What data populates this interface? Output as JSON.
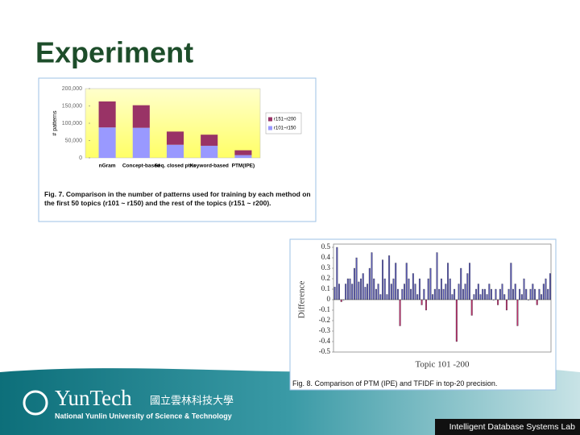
{
  "slide_title": "Experiment",
  "footer": {
    "logo": "YunTech",
    "university_cn": "國立雲林科技大學",
    "university_en": "National Yunlin University of Science & Technology",
    "lab": "Intelligent Database Systems Lab"
  },
  "chart_data": [
    {
      "type": "stacked_bar",
      "y_label": "# patterns",
      "categories": [
        "nGram",
        "Concept-based",
        "Seq. closed ptns",
        "Keyword-based",
        "PTM(IPE)"
      ],
      "series": [
        {
          "name": "r101~r150",
          "color": "#9999ff",
          "values": [
            88000,
            87000,
            38000,
            35000,
            8000
          ]
        },
        {
          "name": "r151~r200",
          "color": "#993366",
          "values": [
            75000,
            65000,
            38000,
            32000,
            14000
          ]
        }
      ],
      "ylim": [
        0,
        200000
      ],
      "yticks": [
        0,
        {
          "value": 50000,
          "label": "50,000"
        },
        {
          "value": 100000,
          "label": "100,000"
        },
        {
          "value": 150000,
          "label": "150,000"
        },
        {
          "value": 200000,
          "label": "200,000"
        }
      ],
      "background": "#ffff99",
      "caption": "Fig. 7. Comparison in the number of patterns used for training by each method on the first 50 topics (r101 ~ r150) and the rest of the topics (r151 ~ r200)."
    },
    {
      "type": "bar",
      "y_label": "Difference",
      "x_label": "Topic 101 -200",
      "values": [
        0.12,
        0.5,
        0.15,
        -0.02,
        0,
        0.15,
        0.2,
        0.2,
        0.15,
        0.3,
        0.4,
        0.17,
        0.2,
        0.25,
        0.12,
        0.15,
        0.3,
        0.45,
        0.2,
        0.1,
        0.15,
        0.05,
        0.38,
        0.2,
        0.05,
        0.42,
        0.15,
        0.2,
        0.35,
        0.1,
        -0.25,
        0.1,
        0.15,
        0.35,
        0.2,
        0.1,
        0.25,
        0.15,
        0.05,
        0.2,
        -0.05,
        0.1,
        -0.1,
        0.2,
        0.3,
        0.05,
        0.1,
        0.45,
        0.1,
        0.2,
        0.1,
        0.15,
        0.35,
        0.2,
        0.05,
        0.1,
        -0.4,
        0.15,
        0.3,
        0.1,
        0.15,
        0.25,
        0.35,
        -0.15,
        0.05,
        0.1,
        0.15,
        0.05,
        0.1,
        0.1,
        0.05,
        0.15,
        0.1,
        0,
        0.1,
        -0.05,
        0.1,
        0.15,
        0.05,
        -0.1,
        0.1,
        0.35,
        0.1,
        0.15,
        -0.25,
        0.1,
        0.05,
        0.2,
        0.1,
        0,
        0.1,
        0.15,
        0.1,
        -0.05,
        0.1,
        0.05,
        0.15,
        0.2,
        0.1,
        0.25
      ],
      "color": "#5a5ab4",
      "negative_color": "#c0306a",
      "ylim": [
        -0.5,
        0.5
      ],
      "yticks": [
        -0.5,
        -0.4,
        -0.3,
        -0.2,
        -0.1,
        0,
        0.1,
        0.2,
        0.3,
        0.4,
        0.5
      ],
      "caption": "Fig. 8. Comparison of PTM (IPE) and TFIDF in top-20 precision."
    }
  ]
}
